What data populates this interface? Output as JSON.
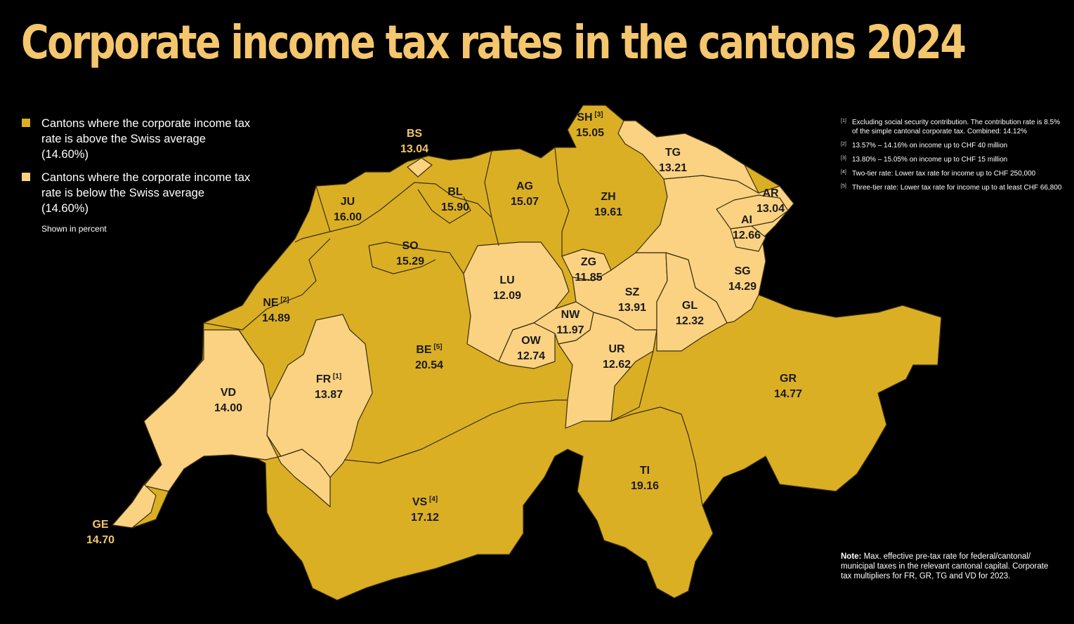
{
  "title": "Corporate income tax rates in the cantons 2024",
  "colors": {
    "above": "#dbaf24",
    "below": "#fad282",
    "title": "#f4c66d",
    "background": "#000000"
  },
  "legend": {
    "above": "Cantons where the corporate income tax rate is above the Swiss average (14.60%)",
    "below": "Cantons where the corporate income tax rate is below the Swiss average (14.60%)",
    "unit_note": "Shown in percent"
  },
  "footnotes": [
    {
      "mark": "[1]",
      "text": "Excluding social security contribution. The contribution rate is 8.5% of the simple cantonal corporate tax. Combined: 14.12%"
    },
    {
      "mark": "[2]",
      "text": "13.57% – 14.16% on income up to CHF 40 million"
    },
    {
      "mark": "[3]",
      "text": "13.80% – 15.05% on income up to CHF 15 million"
    },
    {
      "mark": "[4]",
      "text": "Two-tier rate: Lower tax rate for income up to CHF 250,000"
    },
    {
      "mark": "[5]",
      "text": "Three-tier rate: Lower tax rate for income up to at least CHF 66,800"
    }
  ],
  "note": {
    "label": "Note:",
    "text": "Max. effective pre-tax rate for federal/cantonal/ municipal taxes in the relevant cantonal capital. Corporate tax multipliers for FR, GR, TG and VD for 2023."
  },
  "cantons": [
    {
      "code": "BS",
      "value": "13.04",
      "category": "below",
      "sup": ""
    },
    {
      "code": "SH",
      "value": "15.05",
      "category": "above",
      "sup": "[3]"
    },
    {
      "code": "TG",
      "value": "13.21",
      "category": "below",
      "sup": ""
    },
    {
      "code": "JU",
      "value": "16.00",
      "category": "above",
      "sup": ""
    },
    {
      "code": "BL",
      "value": "15.90",
      "category": "above",
      "sup": ""
    },
    {
      "code": "AG",
      "value": "15.07",
      "category": "above",
      "sup": ""
    },
    {
      "code": "ZH",
      "value": "19.61",
      "category": "above",
      "sup": ""
    },
    {
      "code": "AR",
      "value": "13.04",
      "category": "below",
      "sup": ""
    },
    {
      "code": "AI",
      "value": "12.66",
      "category": "below",
      "sup": ""
    },
    {
      "code": "SO",
      "value": "15.29",
      "category": "above",
      "sup": ""
    },
    {
      "code": "LU",
      "value": "12.09",
      "category": "below",
      "sup": ""
    },
    {
      "code": "ZG",
      "value": "11.85",
      "category": "below",
      "sup": ""
    },
    {
      "code": "SZ",
      "value": "13.91",
      "category": "below",
      "sup": ""
    },
    {
      "code": "SG",
      "value": "14.29",
      "category": "below",
      "sup": ""
    },
    {
      "code": "NE",
      "value": "14.89",
      "category": "above",
      "sup": "[2]"
    },
    {
      "code": "NW",
      "value": "11.97",
      "category": "below",
      "sup": ""
    },
    {
      "code": "GL",
      "value": "12.32",
      "category": "below",
      "sup": ""
    },
    {
      "code": "OW",
      "value": "12.74",
      "category": "below",
      "sup": ""
    },
    {
      "code": "BE",
      "value": "20.54",
      "category": "above",
      "sup": "[5]"
    },
    {
      "code": "UR",
      "value": "12.62",
      "category": "below",
      "sup": ""
    },
    {
      "code": "FR",
      "value": "13.87",
      "category": "below",
      "sup": "[1]"
    },
    {
      "code": "GR",
      "value": "14.77",
      "category": "above",
      "sup": ""
    },
    {
      "code": "VD",
      "value": "14.00",
      "category": "below",
      "sup": ""
    },
    {
      "code": "TI",
      "value": "19.16",
      "category": "above",
      "sup": ""
    },
    {
      "code": "VS",
      "value": "17.12",
      "category": "above",
      "sup": "[4]"
    },
    {
      "code": "GE",
      "value": "14.70",
      "category": "above",
      "sup": ""
    }
  ]
}
